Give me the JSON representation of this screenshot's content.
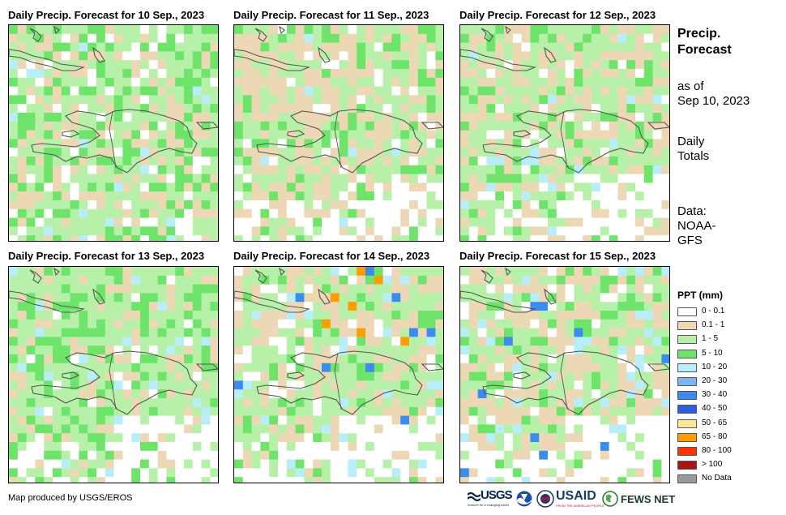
{
  "panels": [
    {
      "title": "Daily Precip. Forecast for 10 Sep., 2023",
      "seed": 11,
      "white": 0.1,
      "tan": 0.22,
      "lg": 0.42,
      "mg": 0.22,
      "cyan": 0.04,
      "blue": 0.0,
      "orange": 0.0,
      "southWhite": 0.05
    },
    {
      "title": "Daily Precip. Forecast for 11 Sep., 2023",
      "seed": 23,
      "white": 0.08,
      "tan": 0.38,
      "lg": 0.38,
      "mg": 0.14,
      "cyan": 0.02,
      "blue": 0.0,
      "orange": 0.0,
      "southWhite": 0.55
    },
    {
      "title": "Daily Precip. Forecast for 12 Sep., 2023",
      "seed": 37,
      "white": 0.06,
      "tan": 0.34,
      "lg": 0.44,
      "mg": 0.12,
      "cyan": 0.04,
      "blue": 0.0,
      "orange": 0.0,
      "southWhite": 0.7
    },
    {
      "title": "Daily Precip. Forecast for 13 Sep., 2023",
      "seed": 41,
      "white": 0.06,
      "tan": 0.18,
      "lg": 0.5,
      "mg": 0.22,
      "cyan": 0.04,
      "blue": 0.0,
      "orange": 0.0,
      "southWhite": 0.6
    },
    {
      "title": "Daily Precip. Forecast for 14 Sep., 2023",
      "seed": 53,
      "white": 0.1,
      "tan": 0.3,
      "lg": 0.42,
      "mg": 0.12,
      "cyan": 0.06,
      "blue": 0.02,
      "orange": 0.01,
      "southWhite": 0.75
    },
    {
      "title": "Daily Precip. Forecast for 15 Sep., 2023",
      "seed": 67,
      "white": 0.08,
      "tan": 0.36,
      "lg": 0.38,
      "mg": 0.12,
      "cyan": 0.06,
      "blue": 0.02,
      "orange": 0.0,
      "southWhite": 0.7
    }
  ],
  "side": {
    "title_line1": "Precip.",
    "title_line2": "Forecast",
    "asof_line1": "as of",
    "asof_line2": "Sep 10, 2023",
    "totals_line1": "Daily",
    "totals_line2": "Totals",
    "data_line1": "Data:",
    "data_line2": "NOAA-",
    "data_line3": "GFS"
  },
  "legend": {
    "title": "PPT (mm)",
    "items": [
      {
        "label": "0 - 0.1",
        "color": "#ffffff"
      },
      {
        "label": "0.1 - 1",
        "color": "#ecd8b4"
      },
      {
        "label": "1 - 5",
        "color": "#b7f0a8"
      },
      {
        "label": "5 - 10",
        "color": "#6ee46a"
      },
      {
        "label": "10 - 20",
        "color": "#b8eefa"
      },
      {
        "label": "20 - 30",
        "color": "#78b8f0"
      },
      {
        "label": "30 - 40",
        "color": "#3c8cf0"
      },
      {
        "label": "40 - 50",
        "color": "#2a60e0"
      },
      {
        "label": "50 - 65",
        "color": "#ffe696"
      },
      {
        "label": "65 - 80",
        "color": "#ff9c00"
      },
      {
        "label": "80 - 100",
        "color": "#ff3200"
      },
      {
        "label": "> 100",
        "color": "#a81414"
      },
      {
        "label": "No Data",
        "color": "#9a9a9a"
      }
    ]
  },
  "credit": "Map produced by USGS/EROS",
  "logos": {
    "usgs": "USGS",
    "usgs_tagline": "science for a changing world",
    "usaid": "USAID",
    "usaid_tagline": "FROM THE AMERICAN PEOPLE",
    "fewsnet": "FEWS NET"
  }
}
